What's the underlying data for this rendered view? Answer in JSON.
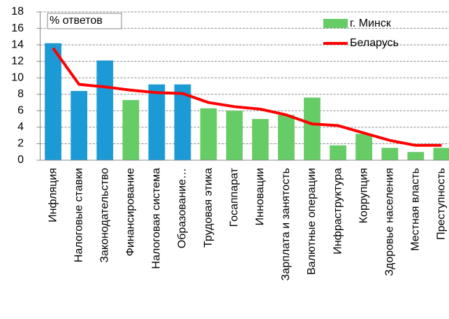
{
  "chart_data": {
    "type": "bar-line",
    "annotation": "% ответов",
    "categories": [
      "Инфляция",
      "Налоговые ставки",
      "Законодательство",
      "Финансирование",
      "Налоговая система",
      "Образование…",
      "Трудовая этика",
      "Госаппарат",
      "Инновации",
      "Зарплата и занятость",
      "Валютные операции",
      "Инфраструктура",
      "Коррупция",
      "Здоровье населения",
      "Местная власть",
      "Преступность"
    ],
    "series": [
      {
        "name": "г. Минск",
        "type": "bar",
        "color": "#66cc66",
        "bar_colors": [
          "#1c9ad6",
          "#1c9ad6",
          "#1c9ad6",
          "#66cc66",
          "#1c9ad6",
          "#1c9ad6",
          "#66cc66",
          "#66cc66",
          "#66cc66",
          "#66cc66",
          "#66cc66",
          "#66cc66",
          "#66cc66",
          "#66cc66",
          "#66cc66",
          "#66cc66"
        ],
        "values": [
          14.2,
          8.4,
          12.1,
          7.3,
          9.2,
          9.2,
          6.3,
          6.0,
          5.0,
          5.5,
          7.6,
          1.8,
          3.2,
          1.5,
          1.0,
          1.5
        ]
      },
      {
        "name": "Беларусь",
        "type": "line",
        "color": "#ff0000",
        "values": [
          13.6,
          9.2,
          8.9,
          8.5,
          8.2,
          8.1,
          7.0,
          6.5,
          6.2,
          5.5,
          4.4,
          4.2,
          3.3,
          2.4,
          1.8,
          1.8
        ]
      }
    ],
    "ylim": [
      0,
      18
    ],
    "yticks": [
      0,
      2,
      4,
      6,
      8,
      10,
      12,
      14,
      16,
      18
    ],
    "grid": true
  }
}
